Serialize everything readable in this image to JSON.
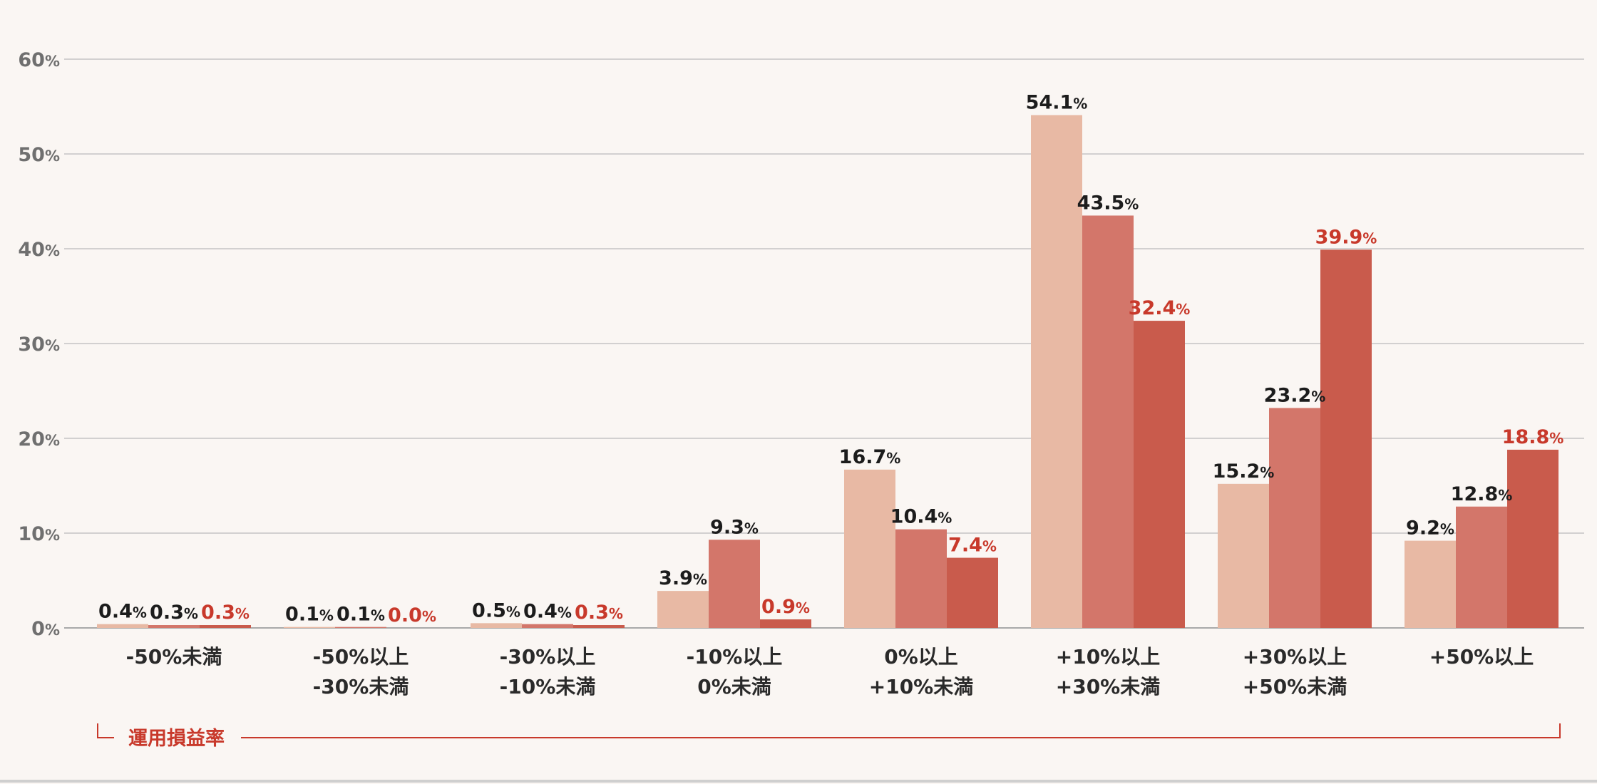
{
  "chart_data": {
    "type": "bar",
    "categories": [
      [
        "-50%未満"
      ],
      [
        "-50%以上",
        "-30%未満"
      ],
      [
        "-30%以上",
        "-10%未満"
      ],
      [
        "-10%以上",
        "0%未満"
      ],
      [
        "0%以上",
        "+10%未満"
      ],
      [
        "+10%以上",
        "+30%未満"
      ],
      [
        "+30%以上",
        "+50%未満"
      ],
      [
        "+50%以上"
      ]
    ],
    "series": [
      {
        "values": [
          0.4,
          0.1,
          0.5,
          3.9,
          16.7,
          54.1,
          15.2,
          9.2
        ],
        "color": "#e8b9a4",
        "label_color": "#1c1c1c"
      },
      {
        "values": [
          0.3,
          0.1,
          0.4,
          9.3,
          10.4,
          43.5,
          23.2,
          12.8
        ],
        "color": "#d3766a",
        "label_color": "#1c1c1c"
      },
      {
        "values": [
          0.3,
          0.0,
          0.3,
          0.9,
          7.4,
          32.4,
          39.9,
          18.8
        ],
        "color": "#c95b4c",
        "label_color": "#c8392b"
      }
    ],
    "ylim": [
      0,
      60
    ],
    "yticks": [
      0,
      10,
      20,
      30,
      40,
      50,
      60
    ],
    "value_unit": "%",
    "grid": true,
    "xlabel": "運用損益率",
    "axis_color": "#c8392b"
  }
}
